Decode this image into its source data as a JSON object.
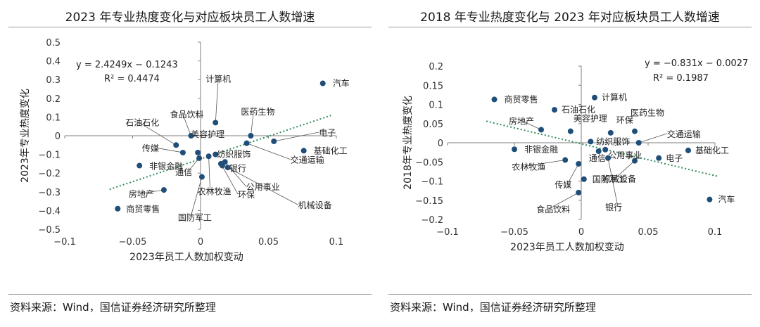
{
  "chart_data": [
    {
      "type": "scatter",
      "title": "2023 年专业热度变化与对应板块员工人数增速",
      "xlabel": "2023年员工人数加权变动",
      "ylabel": "2023年专业热度变化",
      "xlim": [
        -0.1,
        0.1
      ],
      "ylim": [
        -0.5,
        0.5
      ],
      "xticks": [
        -0.1,
        -0.05,
        0,
        0.05,
        0.1
      ],
      "xtick_labels": [
        "−0.1",
        "−0.05",
        "0",
        "0.05",
        "0.1"
      ],
      "yticks": [
        -0.5,
        -0.4,
        -0.3,
        -0.2,
        -0.1,
        0,
        0.1,
        0.2,
        0.3,
        0.4,
        0.5
      ],
      "ytick_labels": [
        "−0.5",
        "−0.4",
        "−0.3",
        "−0.2",
        "−0.1",
        "0",
        "0.1",
        "0.2",
        "0.3",
        "0.4",
        "0.5"
      ],
      "grid": false,
      "marker_color": "#1f4e79",
      "trendline_color": "#2e8b57",
      "trendline": {
        "slope": 2.4249,
        "intercept": -0.1243
      },
      "equation": "y = 2.4249x − 0.1243",
      "r_squared": "R² = 0.4474",
      "points": [
        {
          "label": "汽车",
          "x": 0.09,
          "y": 0.28
        },
        {
          "label": "计算机",
          "x": 0.011,
          "y": 0.07
        },
        {
          "label": "医药生物",
          "x": 0.037,
          "y": 0.0
        },
        {
          "label": "电子",
          "x": 0.054,
          "y": -0.03
        },
        {
          "label": "基础化工",
          "x": 0.076,
          "y": -0.08
        },
        {
          "label": "交通运输",
          "x": 0.034,
          "y": -0.04
        },
        {
          "label": "机械设备",
          "x": 0.02,
          "y": -0.17
        },
        {
          "label": "公用事业",
          "x": 0.018,
          "y": -0.14
        },
        {
          "label": "银行",
          "x": 0.016,
          "y": -0.16
        },
        {
          "label": "环保",
          "x": 0.015,
          "y": -0.15
        },
        {
          "label": "纺织服饰",
          "x": 0.011,
          "y": -0.1
        },
        {
          "label": "农林牧渔",
          "x": 0.006,
          "y": -0.11
        },
        {
          "label": "美容护理",
          "x": -0.002,
          "y": -0.09
        },
        {
          "label": "食品饮料",
          "x": -0.007,
          "y": 0.0
        },
        {
          "label": "石油石化",
          "x": -0.018,
          "y": -0.05
        },
        {
          "label": "传媒",
          "x": -0.013,
          "y": -0.09
        },
        {
          "label": "非银金融",
          "x": -0.045,
          "y": -0.16
        },
        {
          "label": "通信",
          "x": -0.001,
          "y": -0.12
        },
        {
          "label": "国防军工",
          "x": 0.001,
          "y": -0.22
        },
        {
          "label": "房地产",
          "x": -0.027,
          "y": -0.29
        },
        {
          "label": "商贸零售",
          "x": -0.061,
          "y": -0.39
        }
      ]
    },
    {
      "type": "scatter",
      "title": "2018 年专业热度变化与 2023 年对应板块员工人数增速",
      "xlabel": "2023年员工人数加权变动",
      "ylabel": "2018年专业热度变化",
      "xlim": [
        -0.1,
        0.1
      ],
      "ylim": [
        -0.2,
        0.2
      ],
      "xticks": [
        -0.1,
        -0.05,
        0,
        0.05,
        0.1
      ],
      "xtick_labels": [
        "−0.1",
        "−0.05",
        "0",
        "0.05",
        "0.1"
      ],
      "yticks": [
        -0.2,
        -0.15,
        -0.1,
        -0.05,
        0,
        0.05,
        0.1,
        0.15,
        0.2
      ],
      "ytick_labels": [
        "−0.2",
        "−0.15",
        "−0.1",
        "−0.05",
        "0",
        "0.05",
        "0.1",
        "0.15",
        "0.2"
      ],
      "grid": false,
      "marker_color": "#1f4e79",
      "trendline_color": "#2e8b57",
      "trendline": {
        "slope": -0.831,
        "intercept": -0.0027
      },
      "equation": "y = −0.831x − 0.0027",
      "r_squared": "R² = 0.1987",
      "points": [
        {
          "label": "商贸零售",
          "x": -0.065,
          "y": 0.113
        },
        {
          "label": "计算机",
          "x": 0.01,
          "y": 0.118
        },
        {
          "label": "石油石化",
          "x": -0.02,
          "y": 0.086
        },
        {
          "label": "美容护理",
          "x": -0.008,
          "y": 0.03
        },
        {
          "label": "房地产",
          "x": -0.03,
          "y": 0.034
        },
        {
          "label": "环保",
          "x": 0.022,
          "y": 0.026
        },
        {
          "label": "医药生物",
          "x": 0.04,
          "y": 0.03
        },
        {
          "label": "交通运输",
          "x": 0.043,
          "y": 0.0
        },
        {
          "label": "纺织服饰",
          "x": 0.007,
          "y": 0.003
        },
        {
          "label": "基础化工",
          "x": 0.08,
          "y": -0.02
        },
        {
          "label": "非银金融",
          "x": -0.05,
          "y": -0.017
        },
        {
          "label": "公用事业",
          "x": 0.018,
          "y": -0.018
        },
        {
          "label": "通信",
          "x": 0.013,
          "y": -0.022
        },
        {
          "label": "电子",
          "x": 0.058,
          "y": -0.04
        },
        {
          "label": "机械设备",
          "x": 0.04,
          "y": -0.047
        },
        {
          "label": "农林牧渔",
          "x": -0.012,
          "y": -0.045
        },
        {
          "label": "银行",
          "x": 0.02,
          "y": -0.04
        },
        {
          "label": "传媒",
          "x": -0.002,
          "y": -0.055
        },
        {
          "label": "国防军工",
          "x": 0.002,
          "y": -0.095
        },
        {
          "label": "食品饮料",
          "x": -0.002,
          "y": -0.13
        },
        {
          "label": "汽车",
          "x": 0.096,
          "y": -0.148
        }
      ]
    }
  ],
  "source": "资料来源：Wind，国信证券经济研究所整理"
}
